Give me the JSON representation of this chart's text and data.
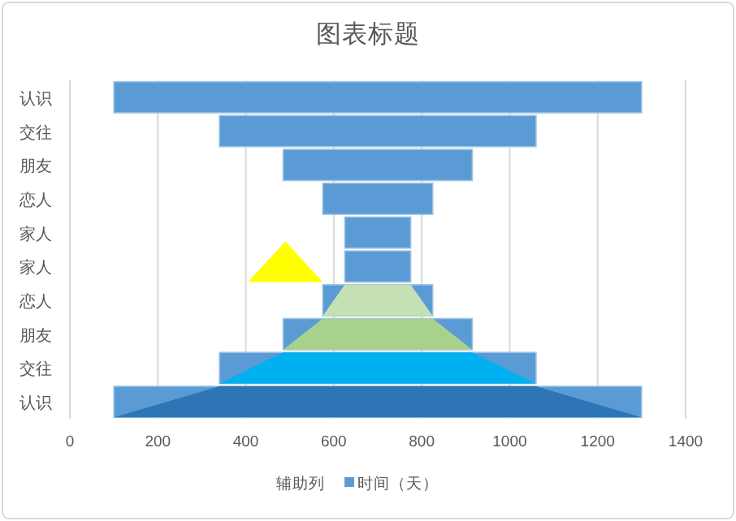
{
  "chart_data": {
    "type": "bar",
    "title": "图表标题",
    "orientation": "horizontal",
    "categories": [
      "认识",
      "交往",
      "朋友",
      "恋人",
      "家人",
      "家人",
      "恋人",
      "朋友",
      "交往",
      "认识"
    ],
    "series": [
      {
        "name": "时间（天）",
        "color": "#5b9bd5",
        "base": [
          100,
          340,
          485,
          575,
          625,
          625,
          575,
          485,
          340,
          100
        ],
        "values": [
          1200,
          720,
          430,
          250,
          150,
          150,
          250,
          430,
          720,
          1200
        ]
      }
    ],
    "annotations": [
      "辅助列"
    ],
    "xlim": [
      0,
      1400
    ],
    "xticks": [
      0,
      200,
      400,
      600,
      800,
      1000,
      1200,
      1400
    ],
    "grid": "x",
    "legend": "bottom"
  }
}
